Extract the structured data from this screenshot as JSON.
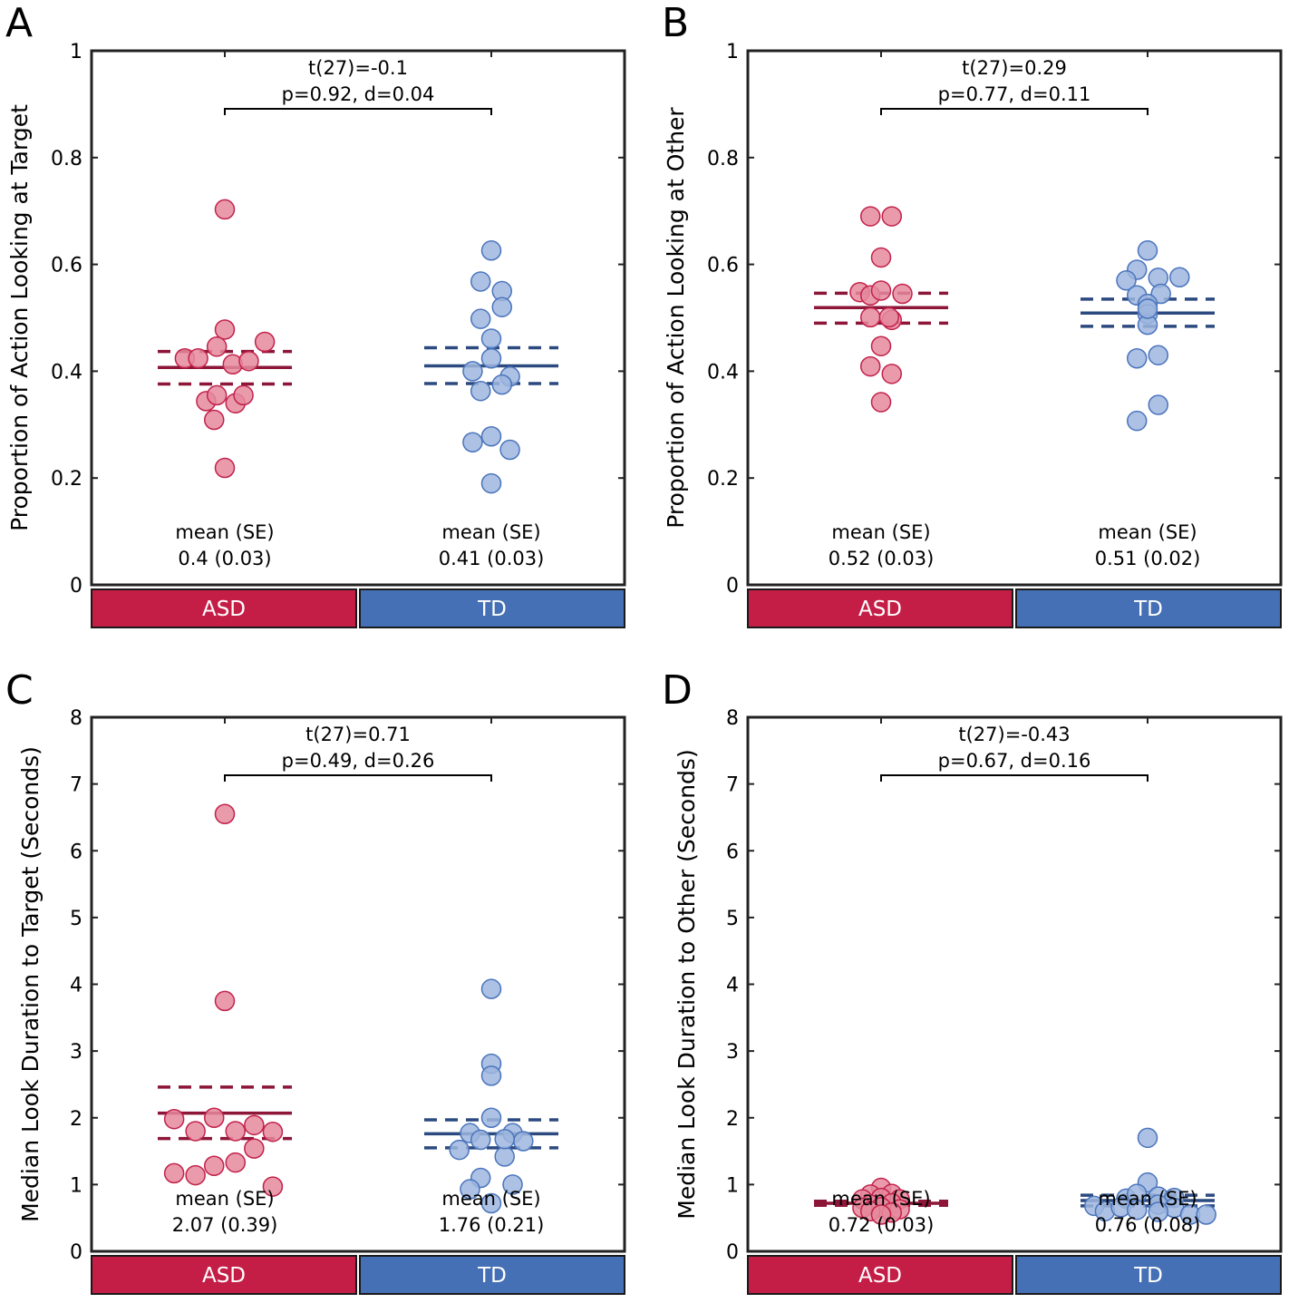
{
  "colors": {
    "asd_point_fill": "#E58A9E",
    "asd_point_stroke": "#C2214A",
    "asd_line": "#8C1538",
    "asd_box": "#C41E47",
    "td_point_fill": "#9DB6DE",
    "td_point_stroke": "#4A74BD",
    "td_line": "#2C4A80",
    "td_box": "#4570B5",
    "axis": "#222222"
  },
  "chart_data": [
    {
      "panel": "A",
      "type": "scatter",
      "ylabel": "Proportion of Action Looking at Target",
      "ylim": [
        0,
        1
      ],
      "yticks": [
        0,
        0.2,
        0.4,
        0.6,
        0.8,
        1
      ],
      "ytick_labels": [
        "0",
        "0.2",
        "0.4",
        "0.6",
        "0.8",
        "1"
      ],
      "stat_line1": "t(27)=-0.1",
      "stat_line2": "p=0.92, d=0.04",
      "groups": [
        {
          "name": "ASD",
          "mean": 0.407,
          "se_upper": 0.437,
          "se_lower": 0.376,
          "mean_label": "mean (SE)",
          "mean_value": "0.4 (0.03)",
          "points": [
            [
              0,
              0.703
            ],
            [
              0,
              0.478
            ],
            [
              -0.15,
              0.424
            ],
            [
              -0.1,
              0.424
            ],
            [
              -0.03,
              0.446
            ],
            [
              0.03,
              0.413
            ],
            [
              0.09,
              0.419
            ],
            [
              0.15,
              0.455
            ],
            [
              -0.07,
              0.344
            ],
            [
              -0.03,
              0.355
            ],
            [
              0.04,
              0.34
            ],
            [
              0.07,
              0.355
            ],
            [
              -0.04,
              0.309
            ],
            [
              0,
              0.219
            ]
          ]
        },
        {
          "name": "TD",
          "mean": 0.41,
          "se_upper": 0.444,
          "se_lower": 0.377,
          "mean_label": "mean (SE)",
          "mean_value": "0.41 (0.03)",
          "points": [
            [
              0,
              0.626
            ],
            [
              -0.04,
              0.568
            ],
            [
              0.04,
              0.55
            ],
            [
              0.04,
              0.52
            ],
            [
              -0.04,
              0.498
            ],
            [
              0,
              0.461
            ],
            [
              0,
              0.424
            ],
            [
              -0.07,
              0.4
            ],
            [
              0.07,
              0.39
            ],
            [
              0.04,
              0.375
            ],
            [
              -0.04,
              0.363
            ],
            [
              -0.07,
              0.267
            ],
            [
              0,
              0.278
            ],
            [
              0.07,
              0.253
            ],
            [
              0,
              0.19
            ]
          ]
        }
      ]
    },
    {
      "panel": "B",
      "type": "scatter",
      "ylabel": "Proportion of Action Looking at Other",
      "ylim": [
        0,
        1
      ],
      "yticks": [
        0,
        0.2,
        0.4,
        0.6,
        0.8,
        1
      ],
      "ytick_labels": [
        "0",
        "0.2",
        "0.4",
        "0.6",
        "0.8",
        "1"
      ],
      "stat_line1": "t(27)=0.29",
      "stat_line2": "p=0.77, d=0.11",
      "groups": [
        {
          "name": "ASD",
          "mean": 0.519,
          "se_upper": 0.546,
          "se_lower": 0.49,
          "mean_label": "mean (SE)",
          "mean_value": "0.52 (0.03)",
          "points": [
            [
              -0.04,
              0.69
            ],
            [
              0.04,
              0.69
            ],
            [
              0,
              0.613
            ],
            [
              -0.08,
              0.548
            ],
            [
              -0.04,
              0.542
            ],
            [
              0,
              0.551
            ],
            [
              0.08,
              0.545
            ],
            [
              -0.04,
              0.501
            ],
            [
              0.04,
              0.496
            ],
            [
              0.03,
              0.501
            ],
            [
              0,
              0.447
            ],
            [
              -0.04,
              0.409
            ],
            [
              0.04,
              0.395
            ],
            [
              0,
              0.342
            ]
          ]
        },
        {
          "name": "TD",
          "mean": 0.509,
          "se_upper": 0.535,
          "se_lower": 0.484,
          "mean_label": "mean (SE)",
          "mean_value": "0.51 (0.02)",
          "points": [
            [
              0,
              0.626
            ],
            [
              -0.04,
              0.59
            ],
            [
              -0.08,
              0.57
            ],
            [
              0.04,
              0.575
            ],
            [
              0.12,
              0.576
            ],
            [
              -0.04,
              0.542
            ],
            [
              0.05,
              0.545
            ],
            [
              0,
              0.526
            ],
            [
              0,
              0.507
            ],
            [
              0,
              0.487
            ],
            [
              -0.04,
              0.424
            ],
            [
              0.04,
              0.43
            ],
            [
              -0.04,
              0.307
            ],
            [
              0.04,
              0.337
            ],
            [
              0,
              0.517
            ]
          ]
        }
      ]
    },
    {
      "panel": "C",
      "type": "scatter",
      "ylabel": "Median Look Duration to Target (Seconds)",
      "ylim": [
        0,
        8
      ],
      "yticks": [
        0,
        1,
        2,
        3,
        4,
        5,
        6,
        7,
        8
      ],
      "ytick_labels": [
        "0",
        "1",
        "2",
        "3",
        "4",
        "5",
        "6",
        "7",
        "8"
      ],
      "stat_line1": "t(27)=0.71",
      "stat_line2": "p=0.49, d=0.26",
      "groups": [
        {
          "name": "ASD",
          "mean": 2.07,
          "se_upper": 2.46,
          "se_lower": 1.69,
          "mean_label": "mean (SE)",
          "mean_value": "2.07 (0.39)",
          "points": [
            [
              0,
              6.55
            ],
            [
              0,
              3.75
            ],
            [
              -0.19,
              1.98
            ],
            [
              -0.11,
              1.8
            ],
            [
              -0.04,
              2.0
            ],
            [
              0.04,
              1.8
            ],
            [
              0.11,
              1.89
            ],
            [
              0.18,
              1.79
            ],
            [
              0.11,
              1.54
            ],
            [
              -0.19,
              1.17
            ],
            [
              -0.11,
              1.14
            ],
            [
              -0.04,
              1.28
            ],
            [
              0.04,
              1.33
            ],
            [
              0.18,
              0.97
            ]
          ]
        },
        {
          "name": "TD",
          "mean": 1.76,
          "se_upper": 1.97,
          "se_lower": 1.55,
          "mean_label": "mean (SE)",
          "mean_value": "1.76 (0.21)",
          "points": [
            [
              0,
              3.93
            ],
            [
              0,
              2.81
            ],
            [
              0,
              2.63
            ],
            [
              0,
              2.0
            ],
            [
              -0.08,
              1.77
            ],
            [
              -0.04,
              1.67
            ],
            [
              0.08,
              1.77
            ],
            [
              0.12,
              1.65
            ],
            [
              -0.12,
              1.52
            ],
            [
              0.05,
              1.42
            ],
            [
              -0.04,
              1.1
            ],
            [
              -0.08,
              0.93
            ],
            [
              0.08,
              1.0
            ],
            [
              0,
              0.72
            ],
            [
              0.05,
              1.68
            ]
          ]
        }
      ]
    },
    {
      "panel": "D",
      "type": "scatter",
      "ylabel": "Median Look Duration to Other (Seconds)",
      "ylim": [
        0,
        8
      ],
      "yticks": [
        0,
        1,
        2,
        3,
        4,
        5,
        6,
        7,
        8
      ],
      "ytick_labels": [
        "0",
        "1",
        "2",
        "3",
        "4",
        "5",
        "6",
        "7",
        "8"
      ],
      "stat_line1": "t(27)=-0.43",
      "stat_line2": "p=0.67, d=0.16",
      "groups": [
        {
          "name": "ASD",
          "mean": 0.72,
          "se_upper": 0.75,
          "se_lower": 0.69,
          "mean_label": "mean (SE)",
          "mean_value": "0.72 (0.03)",
          "points": [
            [
              0,
              0.95
            ],
            [
              -0.04,
              0.85
            ],
            [
              0.04,
              0.86
            ],
            [
              -0.07,
              0.78
            ],
            [
              0,
              0.8
            ],
            [
              0.07,
              0.78
            ],
            [
              -0.04,
              0.7
            ],
            [
              0.04,
              0.72
            ],
            [
              0,
              0.66
            ],
            [
              -0.07,
              0.65
            ],
            [
              0.07,
              0.63
            ],
            [
              -0.04,
              0.6
            ],
            [
              0.04,
              0.58
            ],
            [
              0,
              0.55
            ]
          ]
        },
        {
          "name": "TD",
          "mean": 0.76,
          "se_upper": 0.84,
          "se_lower": 0.68,
          "mean_label": "mean (SE)",
          "mean_value": "0.76 (0.08)",
          "points": [
            [
              0,
              1.7
            ],
            [
              0,
              1.03
            ],
            [
              -0.08,
              0.79
            ],
            [
              -0.04,
              0.86
            ],
            [
              0.04,
              0.82
            ],
            [
              0.1,
              0.8
            ],
            [
              -0.2,
              0.68
            ],
            [
              -0.16,
              0.6
            ],
            [
              -0.1,
              0.66
            ],
            [
              -0.04,
              0.62
            ],
            [
              0.04,
              0.7
            ],
            [
              0.1,
              0.65
            ],
            [
              0.16,
              0.55
            ],
            [
              0.22,
              0.55
            ],
            [
              0.04,
              0.59
            ]
          ]
        }
      ]
    }
  ]
}
